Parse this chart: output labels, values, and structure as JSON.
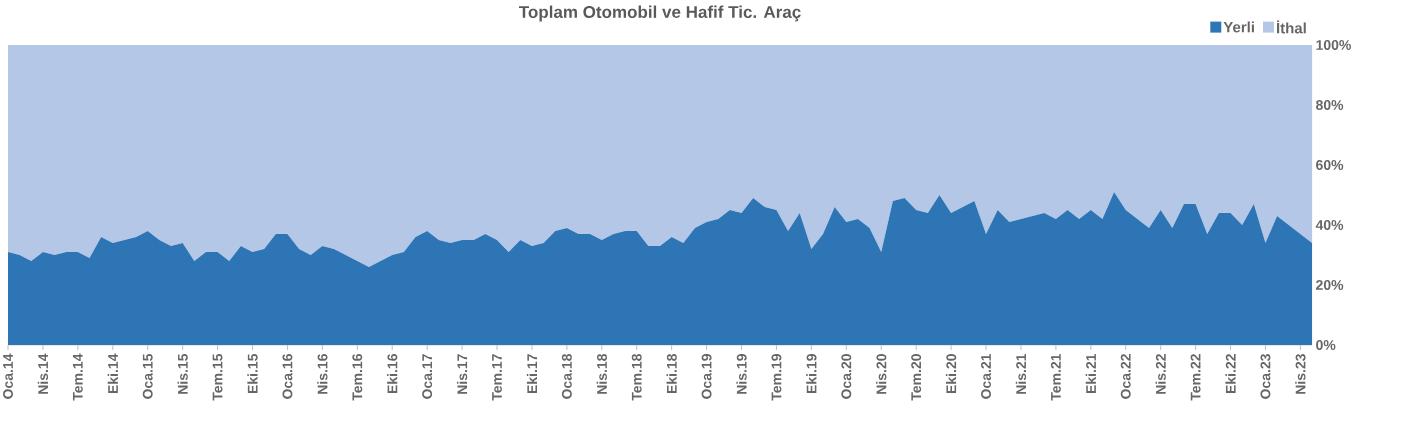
{
  "chart_data": {
    "type": "area",
    "title": "Toplam Otomobil ve Hafif Tic. Araç",
    "stacked": true,
    "legend": "top right",
    "categories": [
      "Oca.14",
      null,
      null,
      "Nis.14",
      null,
      null,
      "Tem.14",
      null,
      null,
      "Eki.14",
      null,
      null,
      "Oca.15",
      null,
      null,
      "Nis.15",
      null,
      null,
      "Tem.15",
      null,
      null,
      "Eki.15",
      null,
      null,
      "Oca.16",
      null,
      null,
      "Nis.16",
      null,
      null,
      "Tem.16",
      null,
      null,
      "Eki.16",
      null,
      null,
      "Oca.17",
      null,
      null,
      "Nis.17",
      null,
      null,
      "Tem.17",
      null,
      null,
      "Eki.17",
      null,
      null,
      "Oca.18",
      null,
      null,
      "Nis.18",
      null,
      null,
      "Tem.18",
      null,
      null,
      "Eki.18",
      null,
      null,
      "Oca.19",
      null,
      null,
      "Nis.19",
      null,
      null,
      "Tem.19",
      null,
      null,
      "Eki.19",
      null,
      null,
      "Oca.20",
      null,
      null,
      "Nis.20",
      null,
      null,
      "Tem.20",
      null,
      null,
      "Eki.20",
      null,
      null,
      "Oca.21",
      null,
      null,
      "Nis.21",
      null,
      null,
      "Tem.21",
      null,
      null,
      "Eki.21",
      null,
      null,
      "Oca.22",
      null,
      null,
      "Nis.22",
      null,
      null,
      "Tem.22",
      null,
      null,
      "Eki.22",
      null,
      null,
      "Oca.23",
      null,
      null,
      "Nis.23",
      null
    ],
    "ylim": [
      0,
      100
    ],
    "yticks": [
      {
        "value": 0,
        "label": "0%"
      },
      {
        "value": 20,
        "label": "20%"
      },
      {
        "value": 40,
        "label": "40%"
      },
      {
        "value": 60,
        "label": "60%"
      },
      {
        "value": 80,
        "label": "80%"
      },
      {
        "value": 100,
        "label": "100%"
      }
    ],
    "series": [
      {
        "name": "Yerli",
        "color": "#2e75b6",
        "values": [
          31,
          30,
          28,
          31,
          30,
          31,
          31,
          29,
          36,
          34,
          35,
          36,
          38,
          35,
          33,
          34,
          28,
          31,
          31,
          28,
          33,
          31,
          32,
          37,
          37,
          32,
          30,
          33,
          32,
          30,
          28,
          26,
          28,
          30,
          31,
          36,
          38,
          35,
          34,
          35,
          35,
          37,
          35,
          31,
          35,
          33,
          34,
          38,
          39,
          37,
          37,
          35,
          37,
          38,
          38,
          33,
          33,
          36,
          34,
          39,
          41,
          42,
          45,
          44,
          49,
          46,
          45,
          38,
          44,
          32,
          37,
          46,
          41,
          42,
          39,
          31,
          48,
          49,
          45,
          44,
          50,
          44,
          46,
          48,
          37,
          45,
          41,
          42,
          43,
          44,
          42,
          45,
          42,
          45,
          42,
          51,
          45,
          42,
          39,
          45,
          39,
          47,
          47,
          37,
          44,
          44,
          40,
          47,
          34,
          43,
          40,
          37,
          34
        ]
      },
      {
        "name": "İthal",
        "color": "#b4c7e7",
        "values": [
          69,
          70,
          72,
          69,
          70,
          69,
          69,
          71,
          64,
          66,
          65,
          64,
          62,
          65,
          67,
          66,
          72,
          69,
          69,
          72,
          67,
          69,
          68,
          63,
          63,
          68,
          70,
          67,
          68,
          70,
          72,
          74,
          72,
          70,
          69,
          64,
          62,
          65,
          66,
          65,
          65,
          63,
          65,
          69,
          65,
          67,
          66,
          62,
          61,
          63,
          63,
          65,
          63,
          62,
          62,
          67,
          67,
          64,
          66,
          61,
          59,
          58,
          55,
          56,
          51,
          54,
          55,
          62,
          56,
          68,
          63,
          54,
          59,
          58,
          61,
          69,
          52,
          51,
          55,
          56,
          50,
          56,
          54,
          52,
          63,
          55,
          59,
          58,
          57,
          56,
          58,
          55,
          58,
          55,
          58,
          49,
          55,
          58,
          61,
          55,
          61,
          53,
          53,
          63,
          56,
          56,
          60,
          53,
          66,
          57,
          60,
          63,
          66
        ]
      }
    ]
  }
}
